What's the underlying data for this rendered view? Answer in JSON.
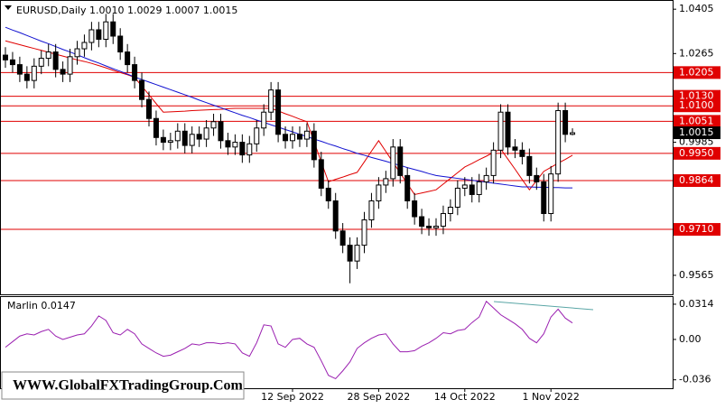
{
  "chart_data": [
    {
      "type": "candlestick",
      "title": "EURUSD,Daily  1.0010 1.0029 1.0007 1.0015",
      "categories": [
        null,
        null,
        null,
        null,
        null,
        null,
        null,
        null,
        null,
        null,
        null,
        null,
        null,
        null,
        null,
        null,
        null,
        null,
        null,
        null,
        null,
        null,
        null,
        null,
        null,
        null,
        null,
        null,
        null,
        null,
        null,
        null,
        null,
        null,
        null,
        null,
        null,
        null,
        null,
        null,
        "12 Sep 2022",
        null,
        null,
        null,
        null,
        null,
        null,
        null,
        null,
        null,
        null,
        null,
        "28 Sep 2022",
        null,
        null,
        null,
        null,
        null,
        null,
        null,
        null,
        null,
        null,
        null,
        "14 Oct 2022",
        null,
        null,
        null,
        null,
        null,
        null,
        null,
        null,
        null,
        null,
        null,
        "1 Nov 2022",
        null,
        null,
        null
      ],
      "open": [
        1.026,
        1.0245,
        1.023,
        1.02,
        1.018,
        1.0225,
        1.025,
        1.027,
        1.0215,
        1.02,
        1.0255,
        1.028,
        1.03,
        1.034,
        1.031,
        1.0365,
        1.032,
        1.027,
        1.023,
        1.018,
        1.012,
        1.006,
        1.0,
        0.9985,
        0.999,
        1.002,
        0.9975,
        1.001,
        0.9995,
        1.003,
        1.005,
        0.999,
        0.997,
        0.9985,
        0.9945,
        0.998,
        1.003,
        1.008,
        1.015,
        1.001,
        0.999,
        1.001,
        0.9995,
        1.002,
        0.993,
        0.984,
        0.98,
        0.9705,
        0.966,
        0.961,
        0.966,
        0.974,
        0.98,
        0.985,
        0.987,
        0.997,
        0.988,
        0.98,
        0.975,
        0.972,
        0.9715,
        0.972,
        0.976,
        0.978,
        0.984,
        0.985,
        0.982,
        0.986,
        0.988,
        0.996,
        1.008,
        0.997,
        0.996,
        0.994,
        0.988,
        0.986,
        0.976,
        0.9885,
        1.0085,
        1.001
      ],
      "high": [
        1.0285,
        1.027,
        1.0255,
        1.0225,
        1.025,
        1.0275,
        1.0295,
        1.0295,
        1.024,
        1.028,
        1.0305,
        1.0325,
        1.0365,
        1.0365,
        1.039,
        1.039,
        1.0345,
        1.0295,
        1.0255,
        1.0205,
        1.0145,
        1.0085,
        1.0025,
        1.0015,
        1.0045,
        1.0045,
        1.0035,
        1.0035,
        1.0055,
        1.0075,
        1.0075,
        1.0015,
        1.001,
        1.001,
        1.0005,
        1.0055,
        1.0105,
        1.0175,
        1.0175,
        1.0035,
        1.0035,
        1.0035,
        1.0045,
        1.0045,
        0.9955,
        0.9865,
        0.9825,
        0.973,
        0.9685,
        0.9685,
        0.9765,
        0.9825,
        0.9875,
        0.9895,
        0.9995,
        0.9995,
        0.9905,
        0.9825,
        0.9775,
        0.9745,
        0.9745,
        0.9785,
        0.9805,
        0.9865,
        0.9875,
        0.9875,
        0.9885,
        0.9905,
        0.9985,
        1.0105,
        1.0105,
        0.9995,
        0.9985,
        0.9965,
        0.9905,
        0.9885,
        0.991,
        1.011,
        1.011,
        1.0029
      ],
      "low": [
        1.022,
        1.0205,
        1.0175,
        1.0155,
        1.0155,
        1.02,
        1.0225,
        1.019,
        1.0175,
        1.0175,
        1.023,
        1.0255,
        1.0275,
        1.0285,
        1.0285,
        1.0295,
        1.0245,
        1.0205,
        1.0155,
        1.0095,
        1.0035,
        0.9975,
        0.996,
        0.996,
        0.9965,
        0.995,
        0.995,
        0.997,
        0.997,
        1.0005,
        0.9965,
        0.9945,
        0.9945,
        0.992,
        0.992,
        0.9955,
        1.0005,
        1.0055,
        0.9985,
        0.9965,
        0.9965,
        0.997,
        0.997,
        0.9905,
        0.9815,
        0.9775,
        0.968,
        0.9635,
        0.954,
        0.9585,
        0.9635,
        0.9715,
        0.9775,
        0.9825,
        0.9845,
        0.9855,
        0.9775,
        0.9725,
        0.9695,
        0.969,
        0.969,
        0.9695,
        0.9735,
        0.9755,
        0.9815,
        0.9795,
        0.9795,
        0.9835,
        0.9855,
        0.9935,
        0.9945,
        0.9935,
        0.9915,
        0.9855,
        0.9835,
        0.9735,
        0.9735,
        0.986,
        0.9985,
        1.0007
      ],
      "close": [
        1.0245,
        1.023,
        1.02,
        1.018,
        1.0225,
        1.025,
        1.027,
        1.0215,
        1.02,
        1.0255,
        1.028,
        1.03,
        1.034,
        1.031,
        1.0365,
        1.032,
        1.027,
        1.023,
        1.018,
        1.012,
        1.006,
        1.0,
        0.9985,
        0.999,
        1.002,
        0.9975,
        1.001,
        0.9995,
        1.003,
        1.005,
        0.999,
        0.997,
        0.9985,
        0.9945,
        0.998,
        1.003,
        1.008,
        1.015,
        1.001,
        0.999,
        1.001,
        0.9995,
        1.002,
        0.993,
        0.984,
        0.98,
        0.9705,
        0.966,
        0.961,
        0.966,
        0.974,
        0.98,
        0.985,
        0.987,
        0.997,
        0.988,
        0.98,
        0.975,
        0.972,
        0.9715,
        0.972,
        0.976,
        0.978,
        0.984,
        0.985,
        0.982,
        0.986,
        0.988,
        0.996,
        1.008,
        0.997,
        0.996,
        0.994,
        0.988,
        0.986,
        0.976,
        0.9885,
        1.0085,
        1.001,
        1.0015
      ],
      "moving_averages": [
        {
          "color": "#e00000",
          "values": [
            1.0305,
            1.0299,
            1.0293,
            1.0287,
            1.0281,
            1.0275,
            1.0269,
            1.0263,
            1.0257,
            1.0251,
            1.0245,
            1.024,
            1.0234,
            1.0227,
            1.022,
            1.0212,
            1.0205,
            1.0198,
            1.019,
            1.0162,
            1.0135,
            1.0107,
            1.008,
            1.0081,
            1.0082,
            1.0083,
            1.0085,
            1.0086,
            1.0087,
            1.0088,
            1.0089,
            1.0091,
            1.0092,
            1.0092,
            1.0092,
            1.0092,
            1.0092,
            1.0092,
            1.0084,
            1.0075,
            1.0067,
            1.0058,
            1.005,
            0.9987,
            0.9923,
            0.986,
            0.9868,
            0.9875,
            0.9883,
            0.989,
            0.9923,
            0.9957,
            0.999,
            0.9956,
            0.9922,
            0.9888,
            0.9854,
            0.982,
            0.9825,
            0.983,
            0.9835,
            0.9853,
            0.9871,
            0.9889,
            0.9907,
            0.9918,
            0.993,
            0.9941,
            0.9953,
            0.9964,
            0.9932,
            0.99,
            0.9867,
            0.9835,
            0.9864,
            0.9893,
            0.9906,
            0.9919,
            0.9931,
            0.9944
          ]
        },
        {
          "color": "#1010d0",
          "values": [
            1.0348,
            1.0339,
            1.0331,
            1.0322,
            1.0313,
            1.0304,
            1.0296,
            1.0287,
            1.0278,
            1.027,
            1.0261,
            1.0252,
            1.0243,
            1.0235,
            1.0226,
            1.0217,
            1.0209,
            1.02,
            1.0191,
            1.0183,
            1.0175,
            1.0167,
            1.0159,
            1.0151,
            1.0143,
            1.0135,
            1.0127,
            1.0118,
            1.011,
            1.0102,
            1.0094,
            1.0086,
            1.0078,
            1.007,
            1.0063,
            1.0055,
            1.0048,
            1.004,
            1.0033,
            1.0025,
            1.0018,
            1.001,
            1.0003,
            0.9995,
            0.9988,
            0.998,
            0.9973,
            0.9965,
            0.9958,
            0.995,
            0.9944,
            0.9937,
            0.9931,
            0.9925,
            0.9918,
            0.9912,
            0.9905,
            0.9899,
            0.9893,
            0.9886,
            0.988,
            0.9877,
            0.9874,
            0.9871,
            0.9868,
            0.9865,
            0.9862,
            0.9859,
            0.9856,
            0.9853,
            0.985,
            0.9847,
            0.9844,
            0.9844,
            0.9843,
            0.9843,
            0.9842,
            0.9842,
            0.9841,
            0.9841
          ]
        }
      ],
      "levels": [
        1.0205,
        {
          "value": 1.013,
          "label": "1.0130"
        },
        {
          "value": 1.01,
          "label": "1.0100"
        },
        1.0051,
        {
          "value": 0.995,
          "label": "0.9950"
        },
        0.9864,
        {
          "value": 0.971,
          "label": "0.9710"
        }
      ],
      "level_color": "#e00000",
      "last_price": 1.0015,
      "ylim": [
        0.9505,
        1.0434
      ],
      "yticks": [
        0.9565,
        0.9985,
        1.0265,
        1.0405
      ],
      "watermark": "WWW.GlobalFXTradingGroup.Com"
    },
    {
      "type": "line",
      "title": "Marlin 0.0147",
      "color": "#9a1fb0",
      "values": [
        -0.007,
        -0.002,
        0.003,
        0.005,
        0.004,
        0.007,
        0.009,
        0.003,
        0.0,
        0.002,
        0.004,
        0.005,
        0.012,
        0.021,
        0.017,
        0.006,
        0.004,
        0.009,
        0.005,
        -0.004,
        -0.008,
        -0.012,
        -0.015,
        -0.014,
        -0.011,
        -0.008,
        -0.004,
        -0.005,
        -0.003,
        -0.003,
        -0.004,
        -0.003,
        -0.004,
        -0.012,
        -0.015,
        -0.003,
        0.013,
        0.012,
        -0.004,
        -0.007,
        0.0,
        0.001,
        -0.004,
        -0.007,
        -0.019,
        -0.032,
        -0.035,
        -0.028,
        -0.02,
        -0.008,
        -0.003,
        0.001,
        0.004,
        0.005,
        -0.004,
        -0.011,
        -0.011,
        -0.01,
        -0.006,
        -0.003,
        0.001,
        0.006,
        0.005,
        0.008,
        0.009,
        0.015,
        0.02,
        0.034,
        0.028,
        0.022,
        0.018,
        0.014,
        0.009,
        0.001,
        -0.003,
        0.005,
        0.02,
        0.027,
        0.019,
        0.0147
      ],
      "ylim": [
        -0.0435,
        0.0386
      ],
      "yticks": [
        -0.036,
        {
          "value": 0,
          "label": "0.00"
        },
        0.0314
      ]
    }
  ]
}
